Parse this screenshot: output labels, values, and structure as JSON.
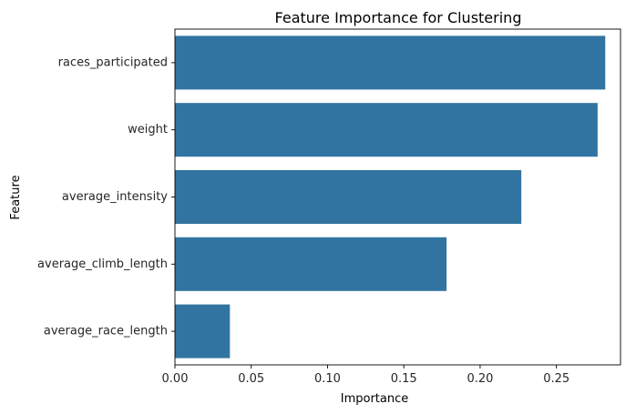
{
  "chart_data": {
    "type": "bar",
    "orientation": "horizontal",
    "title": "Feature Importance for Clustering",
    "xlabel": "Importance",
    "ylabel": "Feature",
    "categories": [
      "races_participated",
      "weight",
      "average_intensity",
      "average_climb_length",
      "average_race_length"
    ],
    "values": [
      0.282,
      0.277,
      0.227,
      0.178,
      0.036
    ],
    "xlim": [
      0,
      0.292
    ],
    "xticks": [
      0.0,
      0.05,
      0.1,
      0.15,
      0.2,
      0.25
    ],
    "xtick_labels": [
      "0.00",
      "0.05",
      "0.10",
      "0.15",
      "0.20",
      "0.25"
    ],
    "grid": false,
    "bar_color": "#3274a1"
  }
}
